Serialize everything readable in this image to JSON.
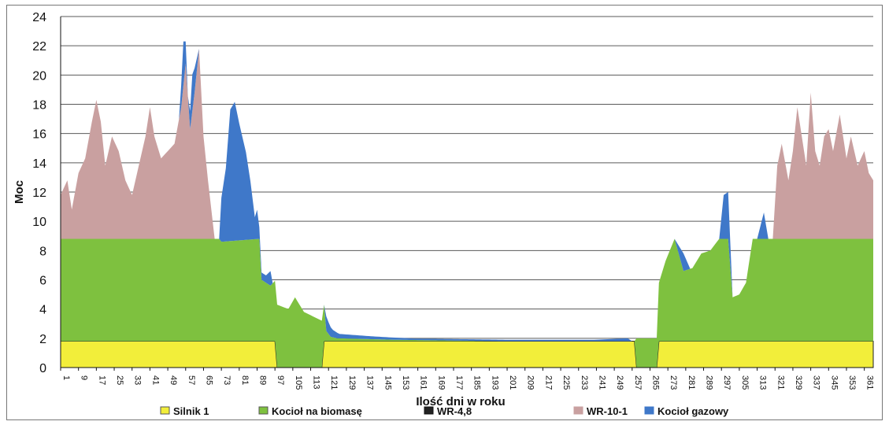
{
  "chart_data": {
    "type": "area",
    "ylabel": "Moc",
    "xlabel": "Ilość dni w roku",
    "ylim": [
      0,
      24
    ],
    "xlim": [
      1,
      365
    ],
    "yticks": [
      "0",
      "2",
      "4",
      "6",
      "8",
      "10",
      "12",
      "14",
      "16",
      "18",
      "20",
      "22",
      "24"
    ],
    "xticks": [
      "1",
      "9",
      "17",
      "25",
      "33",
      "41",
      "49",
      "57",
      "65",
      "73",
      "81",
      "89",
      "97",
      "105",
      "113",
      "121",
      "129",
      "137",
      "145",
      "153",
      "161",
      "169",
      "177",
      "185",
      "193",
      "201",
      "209",
      "217",
      "225",
      "233",
      "241",
      "249",
      "257",
      "265",
      "273",
      "281",
      "289",
      "297",
      "305",
      "313",
      "321",
      "329",
      "337",
      "345",
      "353",
      "361"
    ],
    "grid": "horizontal",
    "legend_position": "bottom",
    "series": [
      {
        "name": "Silnik 1",
        "color": "#f2ee3a",
        "points": [
          [
            1,
            1.8
          ],
          [
            97,
            1.8
          ],
          [
            98,
            0
          ],
          [
            118,
            0
          ],
          [
            119,
            1.8
          ],
          [
            258,
            1.8
          ],
          [
            259,
            0
          ],
          [
            268,
            0
          ],
          [
            269,
            1.8
          ],
          [
            365,
            1.8
          ]
        ]
      },
      {
        "name": "Kocioł na biomasę",
        "color": "#7ec13f",
        "points": [
          [
            1,
            7.0
          ],
          [
            72,
            7.0
          ],
          [
            73,
            6.8
          ],
          [
            90,
            7.0
          ],
          [
            91,
            4.2
          ],
          [
            95,
            3.8
          ],
          [
            98,
            4.3
          ],
          [
            103,
            4.0
          ],
          [
            106,
            4.8
          ],
          [
            110,
            3.8
          ],
          [
            114,
            3.5
          ],
          [
            118,
            3.2
          ],
          [
            119,
            2.5
          ],
          [
            120,
            0.7
          ],
          [
            122,
            0.3
          ],
          [
            125,
            0.2
          ],
          [
            150,
            0.1
          ],
          [
            200,
            0
          ],
          [
            257,
            0
          ],
          [
            258,
            0
          ],
          [
            259,
            2.0
          ],
          [
            268,
            2.0
          ],
          [
            269,
            4.0
          ],
          [
            272,
            5.5
          ],
          [
            276,
            7.0
          ],
          [
            280,
            4.8
          ],
          [
            284,
            5.0
          ],
          [
            288,
            6.0
          ],
          [
            292,
            6.2
          ],
          [
            296,
            7.0
          ],
          [
            300,
            7.0
          ],
          [
            302,
            3.0
          ],
          [
            305,
            3.2
          ],
          [
            308,
            4.0
          ],
          [
            311,
            7.0
          ],
          [
            365,
            7.0
          ]
        ]
      },
      {
        "name": "WR-4,8",
        "color": "#222222",
        "points": [
          [
            1,
            0
          ],
          [
            365,
            0
          ]
        ]
      },
      {
        "name": "WR-10-1",
        "color": "#c9a0a0",
        "points": [
          [
            1,
            3.0
          ],
          [
            4,
            4.0
          ],
          [
            6,
            2.0
          ],
          [
            9,
            4.5
          ],
          [
            12,
            5.5
          ],
          [
            15,
            8.0
          ],
          [
            17,
            9.5
          ],
          [
            19,
            8.0
          ],
          [
            21,
            5.0
          ],
          [
            24,
            7.0
          ],
          [
            27,
            6.0
          ],
          [
            30,
            4.0
          ],
          [
            33,
            3.0
          ],
          [
            36,
            5.0
          ],
          [
            39,
            7.0
          ],
          [
            41,
            9.0
          ],
          [
            43,
            7.0
          ],
          [
            46,
            5.5
          ],
          [
            49,
            6.0
          ],
          [
            52,
            6.5
          ],
          [
            55,
            9.0
          ],
          [
            57,
            12.0
          ],
          [
            59,
            7.5
          ],
          [
            61,
            10.0
          ],
          [
            63,
            13.0
          ],
          [
            65,
            7.0
          ],
          [
            67,
            4.0
          ],
          [
            70,
            0
          ],
          [
            72,
            0
          ],
          [
            320,
            0
          ],
          [
            322,
            5.0
          ],
          [
            324,
            6.5
          ],
          [
            327,
            4.0
          ],
          [
            329,
            6.0
          ],
          [
            331,
            9.0
          ],
          [
            333,
            7.0
          ],
          [
            335,
            5.0
          ],
          [
            337,
            10.0
          ],
          [
            339,
            6.0
          ],
          [
            341,
            5.0
          ],
          [
            343,
            7.0
          ],
          [
            345,
            7.5
          ],
          [
            347,
            6.0
          ],
          [
            350,
            8.5
          ],
          [
            353,
            5.5
          ],
          [
            355,
            7.0
          ],
          [
            358,
            5.0
          ],
          [
            361,
            6.0
          ],
          [
            363,
            4.5
          ],
          [
            365,
            4.0
          ]
        ]
      },
      {
        "name": "Kocioł gazowy",
        "color": "#3f78c9",
        "points": [
          [
            1,
            0
          ],
          [
            54,
            0
          ],
          [
            56,
            3.0
          ],
          [
            58,
            0
          ],
          [
            60,
            2.5
          ],
          [
            63,
            0
          ],
          [
            72,
            0
          ],
          [
            73,
            3.0
          ],
          [
            75,
            5.0
          ],
          [
            77,
            9.0
          ],
          [
            79,
            9.5
          ],
          [
            81,
            8.0
          ],
          [
            84,
            6.0
          ],
          [
            86,
            4.0
          ],
          [
            88,
            1.5
          ],
          [
            89,
            2.0
          ],
          [
            90,
            0.8
          ],
          [
            91,
            0.5
          ],
          [
            93,
            0.5
          ],
          [
            95,
            1.0
          ],
          [
            96,
            0
          ],
          [
            119,
            0
          ],
          [
            120,
            1.0
          ],
          [
            121,
            0.8
          ],
          [
            123,
            0.5
          ],
          [
            126,
            0.3
          ],
          [
            140,
            0.2
          ],
          [
            160,
            0.1
          ],
          [
            240,
            0.1
          ],
          [
            255,
            0.2
          ],
          [
            257,
            0
          ],
          [
            276,
            0
          ],
          [
            280,
            1.2
          ],
          [
            283,
            0
          ],
          [
            296,
            0
          ],
          [
            298,
            3.0
          ],
          [
            300,
            3.2
          ],
          [
            302,
            0
          ],
          [
            313,
            0
          ],
          [
            316,
            1.8
          ],
          [
            318,
            0
          ],
          [
            365,
            0
          ]
        ]
      }
    ]
  }
}
